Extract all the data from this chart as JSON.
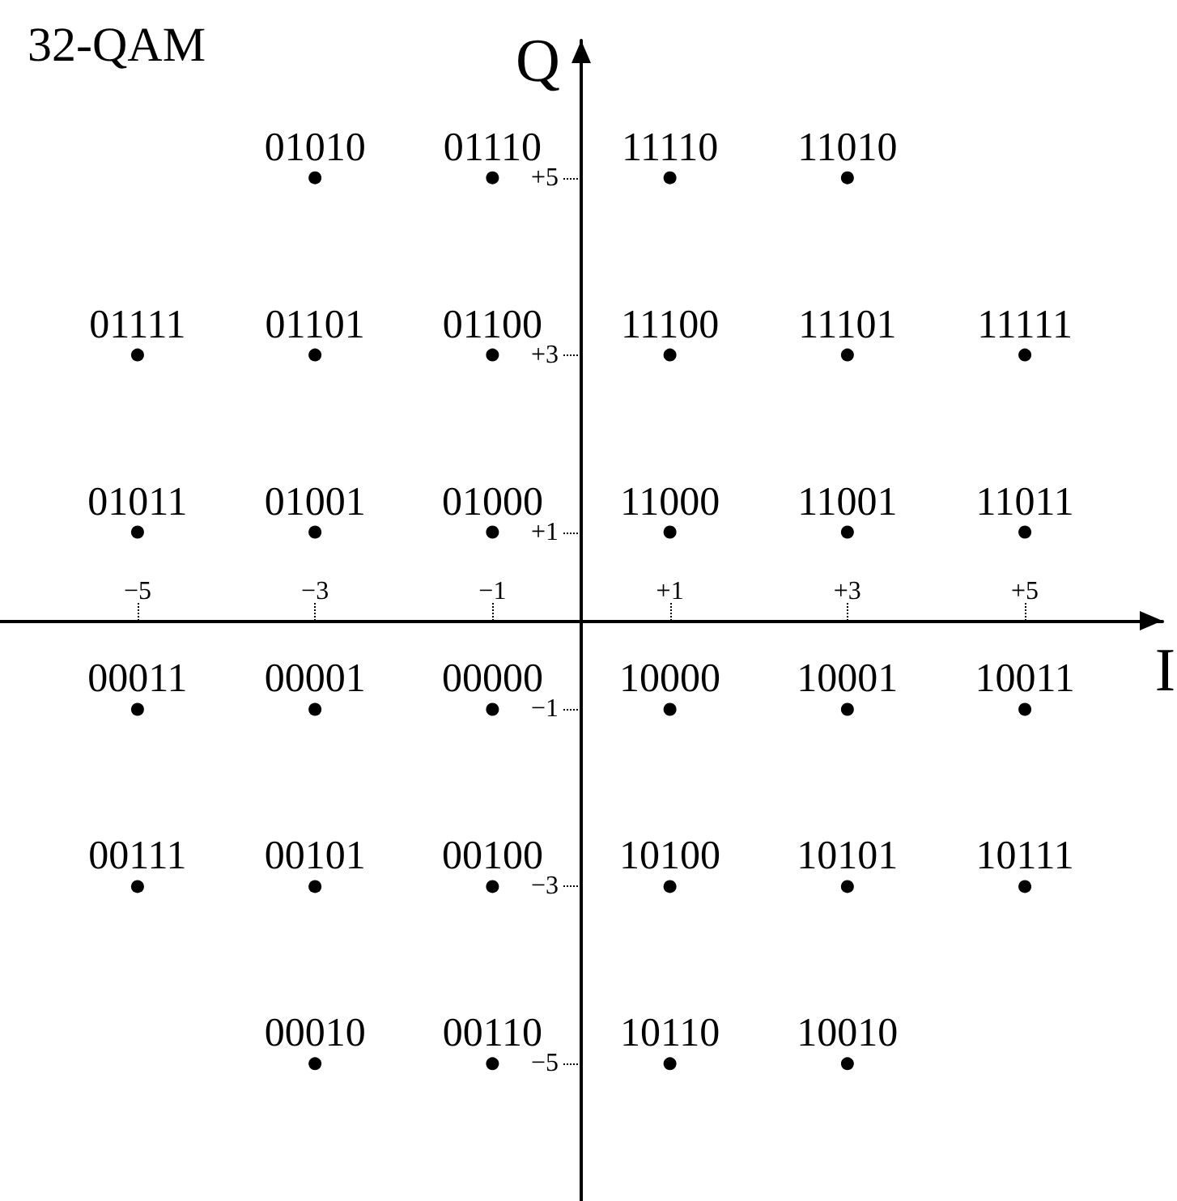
{
  "chart_data": {
    "type": "scatter",
    "title": "32-QAM",
    "xlabel": "I",
    "ylabel": "Q",
    "x": [
      -3,
      -1,
      1,
      3,
      -5,
      -3,
      -1,
      1,
      3,
      5,
      -5,
      -3,
      -1,
      1,
      3,
      5,
      -5,
      -3,
      -1,
      1,
      3,
      5,
      -5,
      -3,
      -1,
      1,
      3,
      5,
      -3,
      -1,
      1,
      3
    ],
    "values": [
      5,
      5,
      5,
      5,
      3,
      3,
      3,
      3,
      3,
      3,
      1,
      1,
      1,
      1,
      1,
      1,
      -1,
      -1,
      -1,
      -1,
      -1,
      -1,
      -3,
      -3,
      -3,
      -3,
      -3,
      -3,
      -5,
      -5,
      -5,
      -5
    ],
    "annotations": [
      {
        "text": "01010",
        "x": -3,
        "y": 5
      },
      {
        "text": "01110",
        "x": -1,
        "y": 5
      },
      {
        "text": "11110",
        "x": 1,
        "y": 5
      },
      {
        "text": "11010",
        "x": 3,
        "y": 5
      },
      {
        "text": "01111",
        "x": -5,
        "y": 3
      },
      {
        "text": "01101",
        "x": -3,
        "y": 3
      },
      {
        "text": "01100",
        "x": -1,
        "y": 3
      },
      {
        "text": "11100",
        "x": 1,
        "y": 3
      },
      {
        "text": "11101",
        "x": 3,
        "y": 3
      },
      {
        "text": "11111",
        "x": 5,
        "y": 3
      },
      {
        "text": "01011",
        "x": -5,
        "y": 1
      },
      {
        "text": "01001",
        "x": -3,
        "y": 1
      },
      {
        "text": "01000",
        "x": -1,
        "y": 1
      },
      {
        "text": "11000",
        "x": 1,
        "y": 1
      },
      {
        "text": "11001",
        "x": 3,
        "y": 1
      },
      {
        "text": "11011",
        "x": 5,
        "y": 1
      },
      {
        "text": "00011",
        "x": -5,
        "y": -1
      },
      {
        "text": "00001",
        "x": -3,
        "y": -1
      },
      {
        "text": "00000",
        "x": -1,
        "y": -1
      },
      {
        "text": "10000",
        "x": 1,
        "y": -1
      },
      {
        "text": "10001",
        "x": 3,
        "y": -1
      },
      {
        "text": "10011",
        "x": 5,
        "y": -1
      },
      {
        "text": "00111",
        "x": -5,
        "y": -3
      },
      {
        "text": "00101",
        "x": -3,
        "y": -3
      },
      {
        "text": "00100",
        "x": -1,
        "y": -3
      },
      {
        "text": "10100",
        "x": 1,
        "y": -3
      },
      {
        "text": "10101",
        "x": 3,
        "y": -3
      },
      {
        "text": "10111",
        "x": 5,
        "y": -3
      },
      {
        "text": "00010",
        "x": -3,
        "y": -5
      },
      {
        "text": "00110",
        "x": -1,
        "y": -5
      },
      {
        "text": "10110",
        "x": 1,
        "y": -5
      },
      {
        "text": "10010",
        "x": 3,
        "y": -5
      }
    ],
    "color": "#000000",
    "marker": "circle",
    "xlim": [
      -6.55,
      6.55
    ],
    "ylim": [
      -6.55,
      6.55
    ],
    "xticks": [
      {
        "value": -5,
        "label": "−5"
      },
      {
        "value": -3,
        "label": "−3"
      },
      {
        "value": -1,
        "label": "−1"
      },
      {
        "value": 1,
        "label": "+1"
      },
      {
        "value": 3,
        "label": "+3"
      },
      {
        "value": 5,
        "label": "+5"
      }
    ],
    "yticks": [
      {
        "value": -5,
        "label": "−5"
      },
      {
        "value": -3,
        "label": "−3"
      },
      {
        "value": -1,
        "label": "−1"
      },
      {
        "value": 1,
        "label": "+1"
      },
      {
        "value": 3,
        "label": "+3"
      },
      {
        "value": 5,
        "label": "+5"
      }
    ],
    "grid": false
  }
}
